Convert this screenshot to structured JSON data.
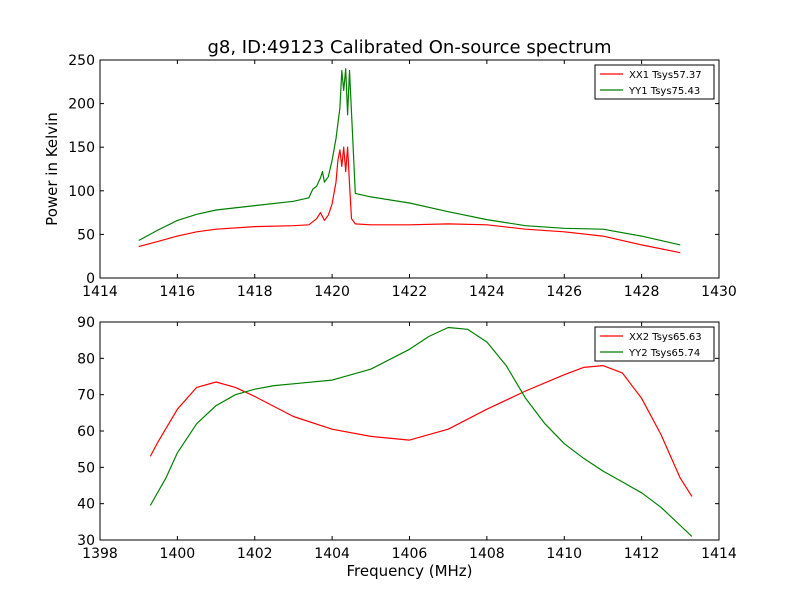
{
  "chart_data": [
    {
      "type": "line",
      "title": "g8, ID:49123 Calibrated On-source spectrum",
      "xlabel": "",
      "ylabel": "Power in Kelvin",
      "xlim": [
        1414,
        1430
      ],
      "ylim": [
        0,
        250
      ],
      "xticks": [
        1414,
        1416,
        1418,
        1420,
        1422,
        1424,
        1426,
        1428,
        1430
      ],
      "yticks": [
        0,
        50,
        100,
        150,
        200,
        250
      ],
      "grid": false,
      "legend": "top-right",
      "series": [
        {
          "name": "XX1 Tsys57.37",
          "color": "#ff0000",
          "x": [
            1415.0,
            1415.5,
            1416.0,
            1416.5,
            1417.0,
            1418.0,
            1419.0,
            1419.4,
            1419.6,
            1419.7,
            1419.8,
            1419.9,
            1420.0,
            1420.1,
            1420.15,
            1420.2,
            1420.25,
            1420.3,
            1420.35,
            1420.4,
            1420.45,
            1420.5,
            1420.6,
            1421.0,
            1422.0,
            1423.0,
            1424.0,
            1425.0,
            1426.0,
            1427.0,
            1428.0,
            1429.0
          ],
          "y": [
            36,
            42,
            48,
            53,
            56,
            59,
            60,
            61,
            68,
            75,
            66,
            72,
            85,
            110,
            135,
            147,
            128,
            150,
            122,
            150,
            108,
            68,
            62,
            61,
            61,
            62,
            61,
            56,
            53,
            48,
            38,
            29
          ]
        },
        {
          "name": "YY1 Tsys75.43",
          "color": "#008000",
          "x": [
            1415.0,
            1415.5,
            1416.0,
            1416.5,
            1417.0,
            1418.0,
            1419.0,
            1419.4,
            1419.5,
            1419.6,
            1419.7,
            1419.75,
            1419.8,
            1419.9,
            1420.0,
            1420.1,
            1420.2,
            1420.25,
            1420.3,
            1420.35,
            1420.4,
            1420.45,
            1420.5,
            1420.6,
            1421.0,
            1422.0,
            1423.0,
            1424.0,
            1425.0,
            1426.0,
            1427.0,
            1428.0,
            1429.0
          ],
          "y": [
            43,
            55,
            66,
            73,
            78,
            83,
            88,
            92,
            102,
            105,
            115,
            122,
            110,
            116,
            135,
            160,
            195,
            238,
            215,
            240,
            187,
            238,
            190,
            97,
            93,
            86,
            76,
            67,
            60,
            57,
            56,
            48,
            38
          ]
        }
      ]
    },
    {
      "type": "line",
      "title": "",
      "xlabel": "Frequency (MHz)",
      "ylabel": "",
      "xlim": [
        1398,
        1414
      ],
      "ylim": [
        30,
        90
      ],
      "xticks": [
        1398,
        1400,
        1402,
        1404,
        1406,
        1408,
        1410,
        1412,
        1414
      ],
      "yticks": [
        30,
        40,
        50,
        60,
        70,
        80,
        90
      ],
      "grid": false,
      "legend": "top-right",
      "series": [
        {
          "name": "XX2 Tsys65.63",
          "color": "#ff0000",
          "x": [
            1399.3,
            1399.5,
            1400.0,
            1400.5,
            1401.0,
            1401.5,
            1402.0,
            1403.0,
            1404.0,
            1405.0,
            1406.0,
            1407.0,
            1408.0,
            1409.0,
            1410.0,
            1410.5,
            1411.0,
            1411.5,
            1412.0,
            1412.5,
            1413.0,
            1413.3
          ],
          "y": [
            53,
            57,
            66,
            72,
            73.5,
            72,
            69.5,
            64,
            60.5,
            58.5,
            57.5,
            60.5,
            66,
            71,
            75.5,
            77.5,
            78,
            76,
            69,
            59,
            47,
            42
          ]
        },
        {
          "name": "YY2 Tsys65.74",
          "color": "#008000",
          "x": [
            1399.3,
            1399.7,
            1400.0,
            1400.5,
            1401.0,
            1401.5,
            1402.0,
            1402.5,
            1403.0,
            1404.0,
            1405.0,
            1406.0,
            1406.5,
            1407.0,
            1407.5,
            1408.0,
            1408.5,
            1409.0,
            1409.5,
            1410.0,
            1410.5,
            1411.0,
            1411.5,
            1412.0,
            1412.5,
            1413.0,
            1413.3
          ],
          "y": [
            39.5,
            47,
            54,
            62,
            67,
            70,
            71.5,
            72.5,
            73,
            74,
            77,
            82.5,
            86,
            88.5,
            88,
            84.5,
            78,
            69,
            62,
            56.5,
            52.5,
            49,
            46,
            43,
            39,
            34,
            31
          ]
        }
      ]
    }
  ]
}
